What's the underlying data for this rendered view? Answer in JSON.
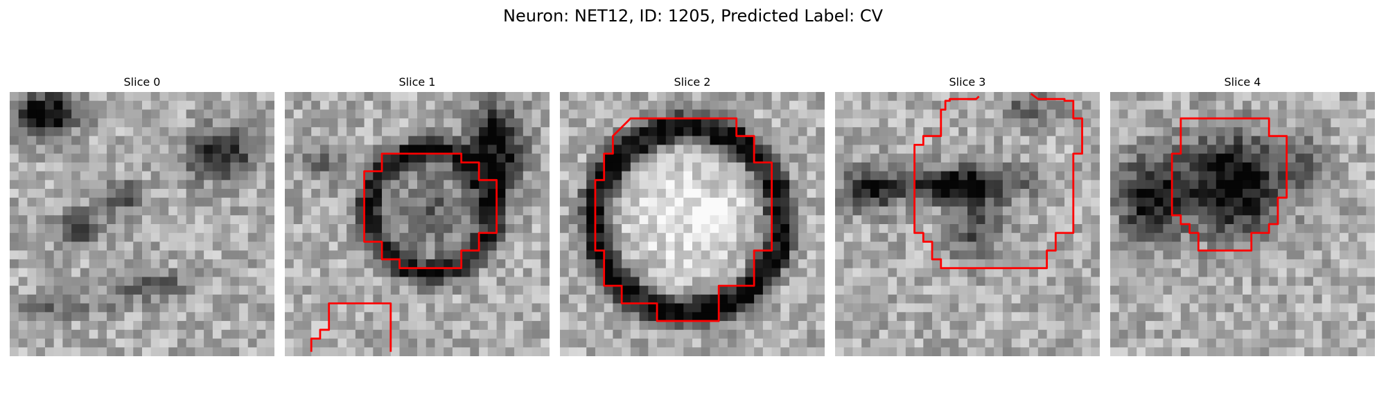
{
  "figure": {
    "title": "Neuron: NET12, ID: 1205, Predicted Label: CV"
  },
  "panels": [
    {
      "title": "Slice 0"
    },
    {
      "title": "Slice 1"
    },
    {
      "title": "Slice 2"
    },
    {
      "title": "Slice 3"
    },
    {
      "title": "Slice 4"
    }
  ],
  "colors": {
    "contour": "#ff0000",
    "background": "#ffffff"
  }
}
